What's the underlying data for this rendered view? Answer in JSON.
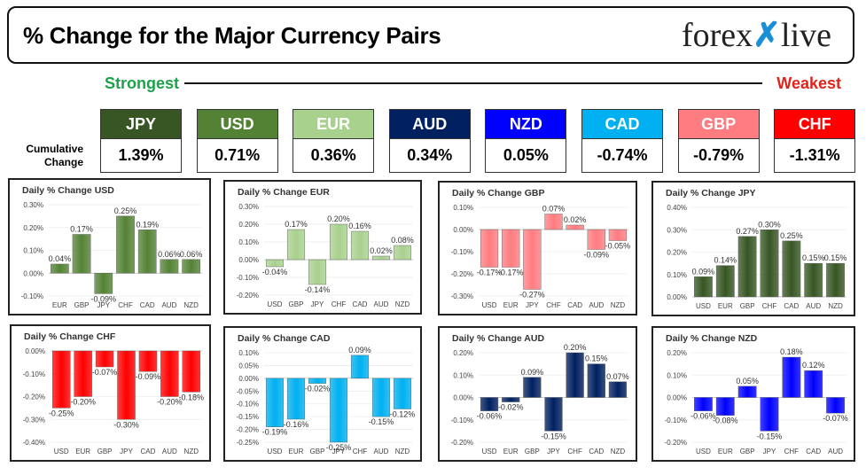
{
  "header": {
    "title": "% Change for the Major Currency Pairs",
    "logo_left": "forex",
    "logo_mark": "✗",
    "logo_right": "live"
  },
  "strongest_label": "Strongest",
  "weakest_label": "Weakest",
  "cumulative_label_line1": "Cumulative",
  "cumulative_label_line2": "Change",
  "currencies": [
    {
      "code": "JPY",
      "value": "1.39%",
      "color": "#375623"
    },
    {
      "code": "USD",
      "value": "0.71%",
      "color": "#548235"
    },
    {
      "code": "EUR",
      "value": "0.36%",
      "color": "#a9d18e"
    },
    {
      "code": "AUD",
      "value": "0.34%",
      "color": "#002060"
    },
    {
      "code": "NZD",
      "value": "0.05%",
      "color": "#0000ff"
    },
    {
      "code": "CAD",
      "value": "-0.74%",
      "color": "#00b0f0"
    },
    {
      "code": "GBP",
      "value": "-0.79%",
      "color": "#ff7c80"
    },
    {
      "code": "CHF",
      "value": "-1.31%",
      "color": "#ff0000"
    }
  ],
  "chart_data": [
    {
      "type": "bar",
      "title": "Daily % Change USD",
      "categories": [
        "EUR",
        "GBP",
        "JPY",
        "CHF",
        "CAD",
        "AUD",
        "NZD"
      ],
      "values": [
        0.04,
        0.17,
        -0.09,
        0.25,
        0.19,
        0.06,
        0.06
      ],
      "labels": [
        "0.04%",
        "0.17%",
        "-0.09%",
        "0.25%",
        "0.19%",
        "0.06%",
        "0.06%"
      ],
      "ylim": [
        -0.1,
        0.3
      ],
      "ticks": [
        -0.1,
        0,
        0.1,
        0.2,
        0.3
      ],
      "tick_labels": [
        "-0.10%",
        "0.00%",
        "0.10%",
        "0.20%",
        "0.30%"
      ],
      "color": "#548235"
    },
    {
      "type": "bar",
      "title": "Daily % Change EUR",
      "categories": [
        "USD",
        "GBP",
        "JPY",
        "CHF",
        "CAD",
        "AUD",
        "NZD"
      ],
      "values": [
        -0.04,
        0.17,
        -0.14,
        0.2,
        0.16,
        0.02,
        0.08
      ],
      "labels": [
        "-0.04%",
        "0.17%",
        "-0.14%",
        "0.20%",
        "0.16%",
        "0.02%",
        "0.08%"
      ],
      "ylim": [
        -0.2,
        0.3
      ],
      "ticks": [
        -0.2,
        -0.1,
        0,
        0.1,
        0.2,
        0.3
      ],
      "tick_labels": [
        "-0.20%",
        "-0.10%",
        "0.00%",
        "0.10%",
        "0.20%",
        "0.30%"
      ],
      "color": "#a9d18e"
    },
    {
      "type": "bar",
      "title": "Daily % Change GBP",
      "categories": [
        "USD",
        "EUR",
        "JPY",
        "CHF",
        "CAD",
        "AUD",
        "NZD"
      ],
      "values": [
        -0.17,
        -0.17,
        -0.27,
        0.07,
        0.02,
        -0.09,
        -0.05
      ],
      "labels": [
        "-0.17%",
        "-0.17%",
        "-0.27%",
        "0.07%",
        "0.02%",
        "-0.09%",
        "-0.05%"
      ],
      "ylim": [
        -0.3,
        0.1
      ],
      "ticks": [
        -0.3,
        -0.2,
        -0.1,
        0,
        0.1
      ],
      "tick_labels": [
        "-0.30%",
        "-0.20%",
        "-0.10%",
        "0.00%",
        "0.10%"
      ],
      "color": "#ff7c80"
    },
    {
      "type": "bar",
      "title": "Daily % Change JPY",
      "categories": [
        "USD",
        "EUR",
        "GBP",
        "CHF",
        "CAD",
        "AUD",
        "NZD"
      ],
      "values": [
        0.09,
        0.14,
        0.27,
        0.3,
        0.25,
        0.15,
        0.15
      ],
      "labels": [
        "0.09%",
        "0.14%",
        "0.27%",
        "0.30%",
        "0.25%",
        "0.15%",
        "0.15%"
      ],
      "ylim": [
        0,
        0.4
      ],
      "ticks": [
        0,
        0.1,
        0.2,
        0.3,
        0.4
      ],
      "tick_labels": [
        "0.00%",
        "0.10%",
        "0.20%",
        "0.30%",
        "0.40%"
      ],
      "color": "#375623"
    },
    {
      "type": "bar",
      "title": "Daily % Change CHF",
      "categories": [
        "USD",
        "EUR",
        "GBP",
        "JPY",
        "CAD",
        "AUD",
        "NZD"
      ],
      "values": [
        -0.25,
        -0.2,
        -0.07,
        -0.3,
        -0.09,
        -0.2,
        -0.18
      ],
      "labels": [
        "-0.25%",
        "-0.20%",
        "-0.07%",
        "-0.30%",
        "-0.09%",
        "-0.20%",
        "-0.18%"
      ],
      "ylim": [
        -0.4,
        0
      ],
      "ticks": [
        -0.4,
        -0.3,
        -0.2,
        -0.1,
        0
      ],
      "tick_labels": [
        "-0.40%",
        "-0.30%",
        "-0.20%",
        "-0.10%",
        "0.00%"
      ],
      "color": "#ff0000"
    },
    {
      "type": "bar",
      "title": "Daily % Change CAD",
      "categories": [
        "USD",
        "EUR",
        "GBP",
        "JPY",
        "CHF",
        "AUD",
        "NZD"
      ],
      "values": [
        -0.19,
        -0.16,
        -0.02,
        -0.25,
        0.09,
        -0.15,
        -0.12
      ],
      "labels": [
        "-0.19%",
        "-0.16%",
        "-0.02%",
        "-0.25%",
        "0.09%",
        "-0.15%",
        "-0.12%"
      ],
      "ylim": [
        -0.25,
        0.1
      ],
      "ticks": [
        -0.25,
        -0.2,
        -0.15,
        -0.1,
        -0.05,
        0,
        0.05,
        0.1
      ],
      "tick_labels": [
        "-0.25%",
        "-0.20%",
        "-0.15%",
        "-0.10%",
        "-0.05%",
        "0.00%",
        "0.05%",
        "0.10%"
      ],
      "color": "#00b0f0"
    },
    {
      "type": "bar",
      "title": "Daily % Change AUD",
      "categories": [
        "USD",
        "EUR",
        "GBP",
        "JPY",
        "CHF",
        "CAD",
        "NZD"
      ],
      "values": [
        -0.06,
        -0.02,
        0.09,
        -0.15,
        0.2,
        0.15,
        0.07
      ],
      "labels": [
        "-0.06%",
        "-0.02%",
        "0.09%",
        "-0.15%",
        "0.20%",
        "0.15%",
        "0.07%"
      ],
      "ylim": [
        -0.2,
        0.2
      ],
      "ticks": [
        -0.2,
        -0.1,
        0,
        0.1,
        0.2
      ],
      "tick_labels": [
        "-0.20%",
        "-0.10%",
        "0.00%",
        "0.10%",
        "0.20%"
      ],
      "color": "#002060"
    },
    {
      "type": "bar",
      "title": "Daily % Change NZD",
      "categories": [
        "USD",
        "EUR",
        "GBP",
        "JPY",
        "CHF",
        "CAD",
        "AUD"
      ],
      "values": [
        -0.06,
        -0.08,
        0.05,
        -0.15,
        0.18,
        0.12,
        -0.07
      ],
      "labels": [
        "-0.06%",
        "-0.08%",
        "0.05%",
        "-0.15%",
        "0.18%",
        "0.12%",
        "-0.07%"
      ],
      "ylim": [
        -0.2,
        0.2
      ],
      "ticks": [
        -0.2,
        -0.1,
        0,
        0.1,
        0.2
      ],
      "tick_labels": [
        "-0.20%",
        "-0.10%",
        "0.00%",
        "0.10%",
        "0.20%"
      ],
      "color": "#0000ff"
    }
  ]
}
